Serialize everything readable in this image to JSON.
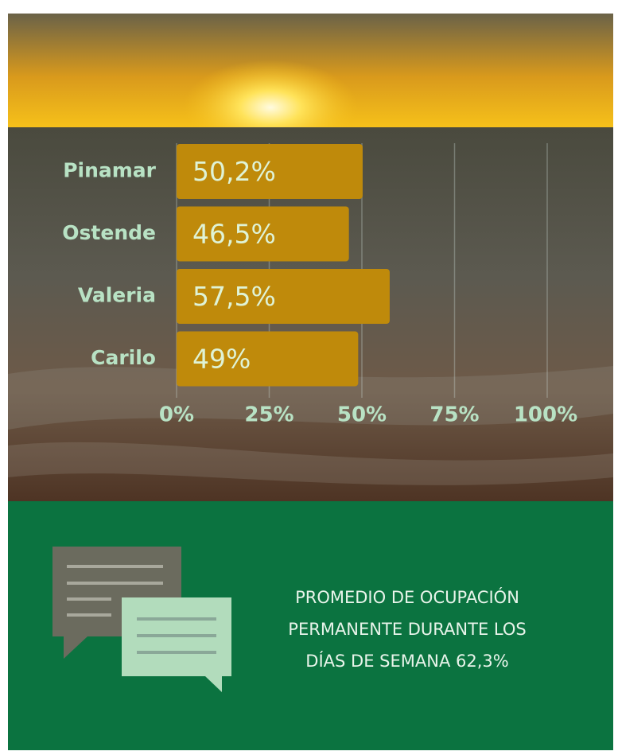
{
  "chart_data": {
    "type": "bar",
    "orientation": "horizontal",
    "categories": [
      "Pinamar",
      "Ostende",
      "Valeria",
      "Carilo"
    ],
    "values": [
      50.2,
      46.5,
      57.5,
      49
    ],
    "value_labels": [
      "50,2%",
      "46,5%",
      "57,5%",
      "49%"
    ],
    "color": "#bf8a0b",
    "xlim": [
      0,
      100
    ],
    "xticks": [
      {
        "value": 0,
        "label": "0%"
      },
      {
        "value": 25,
        "label": "25%"
      },
      {
        "value": 50,
        "label": "50%"
      },
      {
        "value": 75,
        "label": "75%"
      },
      {
        "value": 100,
        "label": "100%"
      }
    ],
    "grid": true
  },
  "footer": {
    "lines": [
      "PROMEDIO DE OCUPACIÓN",
      "PERMANENTE DURANTE LOS",
      "DÍAS DE SEMANA 62,3%"
    ]
  }
}
